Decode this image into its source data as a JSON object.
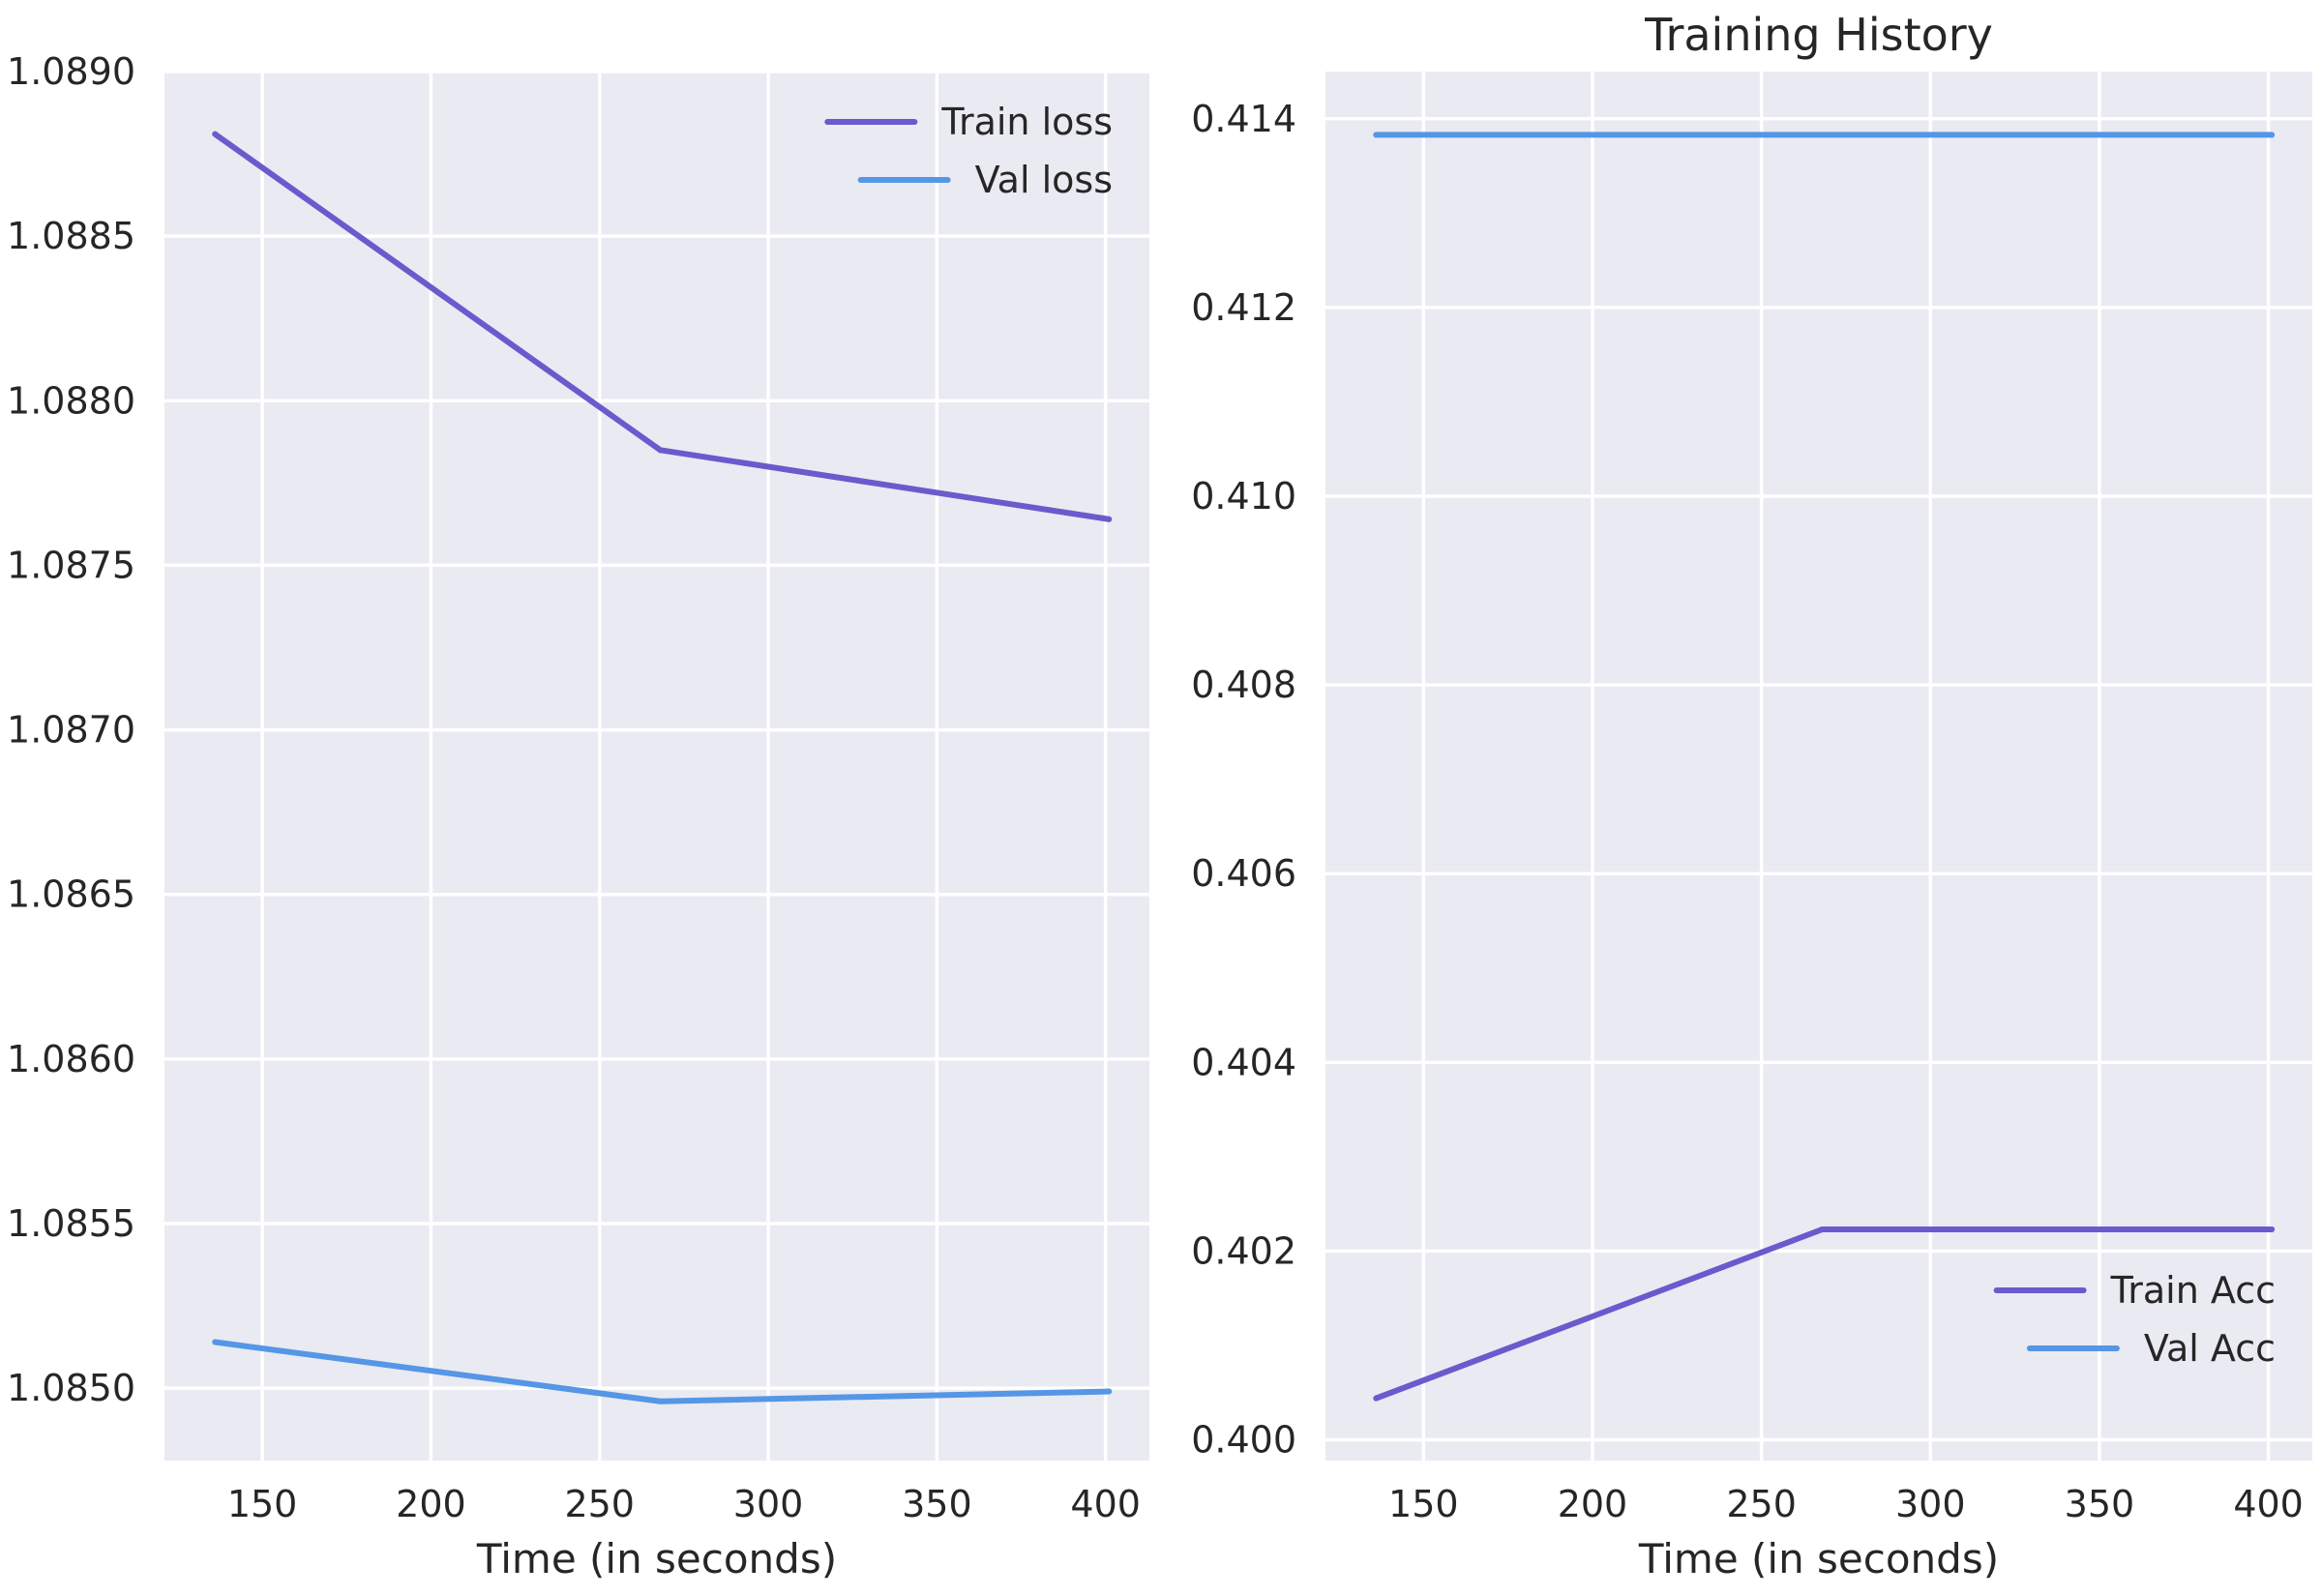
{
  "chart_data": [
    {
      "type": "line",
      "title": "",
      "xlabel": "Time (in seconds)",
      "ylabel": "",
      "xlim": [
        121,
        413
      ],
      "ylim": [
        1.08478,
        1.089
      ],
      "xticks": [
        150,
        200,
        250,
        300,
        350,
        400
      ],
      "yticks": [
        1.085,
        1.0855,
        1.086,
        1.0865,
        1.087,
        1.0875,
        1.088,
        1.0885,
        1.089
      ],
      "ytick_labels": [
        "1.0850",
        "1.0855",
        "1.0860",
        "1.0865",
        "1.0870",
        "1.0875",
        "1.0880",
        "1.0885",
        "1.0890"
      ],
      "xtick_labels": [
        "150",
        "200",
        "250",
        "300",
        "350",
        "400"
      ],
      "grid": true,
      "legend": "top-right",
      "series": [
        {
          "name": "Train loss",
          "color": "#6a5acd",
          "x": [
            136,
            268,
            401
          ],
          "y": [
            1.08881,
            1.08785,
            1.08764
          ]
        },
        {
          "name": "Val loss",
          "color": "#5596e6",
          "x": [
            136,
            268,
            401
          ],
          "y": [
            1.08514,
            1.08496,
            1.08499
          ]
        }
      ]
    },
    {
      "type": "line",
      "title": "Training History",
      "xlabel": "Time (in seconds)",
      "ylabel": "",
      "xlim": [
        121,
        413
      ],
      "ylim": [
        0.39978,
        0.4145
      ],
      "xticks": [
        150,
        200,
        250,
        300,
        350,
        400
      ],
      "yticks": [
        0.4,
        0.402,
        0.404,
        0.406,
        0.408,
        0.41,
        0.412,
        0.414
      ],
      "ytick_labels": [
        "0.400",
        "0.402",
        "0.404",
        "0.406",
        "0.408",
        "0.410",
        "0.412",
        "0.414"
      ],
      "xtick_labels": [
        "150",
        "200",
        "250",
        "300",
        "350",
        "400"
      ],
      "grid": true,
      "legend": "bottom-right",
      "series": [
        {
          "name": "Train Acc",
          "color": "#6a5acd",
          "x": [
            136,
            268,
            401
          ],
          "y": [
            0.40044,
            0.40223,
            0.40223
          ]
        },
        {
          "name": "Val Acc",
          "color": "#5596e6",
          "x": [
            136,
            268,
            401
          ],
          "y": [
            0.41383,
            0.41383,
            0.41383
          ]
        }
      ]
    }
  ]
}
